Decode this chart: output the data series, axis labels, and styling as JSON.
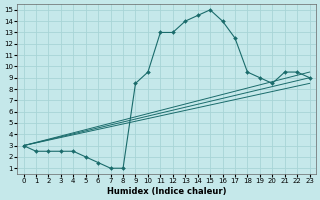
{
  "xlabel": "Humidex (Indice chaleur)",
  "xlim": [
    -0.5,
    23.5
  ],
  "ylim": [
    0.5,
    15.5
  ],
  "xticks": [
    0,
    1,
    2,
    3,
    4,
    5,
    6,
    7,
    8,
    9,
    10,
    11,
    12,
    13,
    14,
    15,
    16,
    17,
    18,
    19,
    20,
    21,
    22,
    23
  ],
  "yticks": [
    1,
    2,
    3,
    4,
    5,
    6,
    7,
    8,
    9,
    10,
    11,
    12,
    13,
    14,
    15
  ],
  "bg_color": "#c5e8ea",
  "grid_color": "#a8d4d6",
  "line_color": "#1a6b6b",
  "main_curve": {
    "x": [
      0,
      1,
      2,
      3,
      4,
      5,
      6,
      7,
      8,
      9,
      10,
      11,
      12,
      13,
      14,
      15,
      16,
      17,
      18,
      19,
      20,
      21,
      22,
      23
    ],
    "y": [
      3,
      2.5,
      2.5,
      2.5,
      2.5,
      2,
      1.5,
      1,
      1,
      8.5,
      9.5,
      13,
      13,
      14,
      14.5,
      15,
      14,
      12.5,
      9.5,
      9,
      8.5,
      9.5,
      9.5,
      9
    ]
  },
  "line1": {
    "x": [
      0,
      23
    ],
    "y": [
      3,
      9.5
    ]
  },
  "line2": {
    "x": [
      0,
      23
    ],
    "y": [
      3,
      9
    ]
  },
  "line3": {
    "x": [
      0,
      23
    ],
    "y": [
      3,
      8.5
    ]
  }
}
